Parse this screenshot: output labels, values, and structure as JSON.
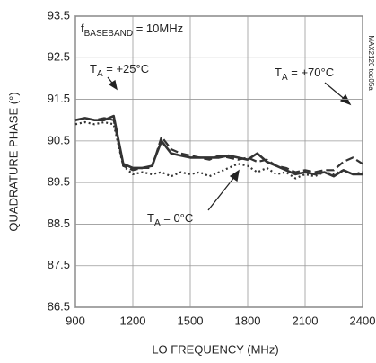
{
  "chart_data": {
    "type": "line",
    "xlabel": "LO FREQUENCY (MHz)",
    "ylabel": "QUADRATURE PHASE (°)",
    "side_note": "MAX2120 toc05a",
    "xlim": [
      900,
      2400
    ],
    "xticks": [
      900,
      1200,
      1500,
      1800,
      2100,
      2400
    ],
    "ylim": [
      86.5,
      93.5
    ],
    "yticks": [
      86.5,
      87.5,
      88.5,
      89.5,
      90.5,
      91.5,
      92.5,
      93.5
    ],
    "grid": true,
    "annotations": [
      {
        "main": "f",
        "sub": "BASEBAND",
        "rest": " = 10MHz"
      }
    ],
    "x": [
      900,
      950,
      1000,
      1050,
      1100,
      1150,
      1200,
      1250,
      1300,
      1350,
      1400,
      1450,
      1500,
      1550,
      1600,
      1650,
      1700,
      1750,
      1800,
      1850,
      1900,
      1950,
      2000,
      2050,
      2100,
      2150,
      2200,
      2250,
      2300,
      2350,
      2400
    ],
    "series": [
      {
        "label": {
          "main": "T",
          "sub": "A",
          "rest": " = +25°C"
        },
        "color": "#333333",
        "style": "solid",
        "values": [
          91.0,
          91.05,
          91.0,
          91.0,
          91.1,
          89.95,
          89.85,
          89.85,
          89.9,
          90.5,
          90.2,
          90.15,
          90.1,
          90.1,
          90.1,
          90.1,
          90.15,
          90.1,
          90.05,
          90.2,
          90.0,
          89.9,
          89.8,
          89.7,
          89.75,
          89.7,
          89.75,
          89.65,
          89.8,
          89.7,
          89.7
        ]
      },
      {
        "label": {
          "main": "T",
          "sub": "A",
          "rest": " = +70°C"
        },
        "color": "#333333",
        "style": "dashed",
        "values": [
          91.0,
          91.05,
          91.0,
          91.05,
          91.0,
          89.9,
          89.8,
          89.85,
          89.85,
          90.6,
          90.3,
          90.2,
          90.15,
          90.1,
          90.05,
          90.15,
          90.1,
          90.05,
          90.1,
          90.0,
          90.05,
          89.9,
          89.85,
          89.75,
          89.8,
          89.75,
          89.8,
          89.8,
          90.0,
          90.1,
          89.95
        ]
      },
      {
        "label": {
          "main": "T",
          "sub": "A",
          "rest": " = 0°C"
        },
        "color": "#333333",
        "style": "dotted",
        "values": [
          90.9,
          90.95,
          90.9,
          90.95,
          90.9,
          89.9,
          89.7,
          89.75,
          89.7,
          89.75,
          89.65,
          89.75,
          89.7,
          89.75,
          89.65,
          89.75,
          89.85,
          89.95,
          89.9,
          89.75,
          89.85,
          89.7,
          89.75,
          89.6,
          89.7,
          89.65,
          89.75,
          89.7,
          89.8,
          89.7,
          89.75
        ]
      }
    ]
  }
}
